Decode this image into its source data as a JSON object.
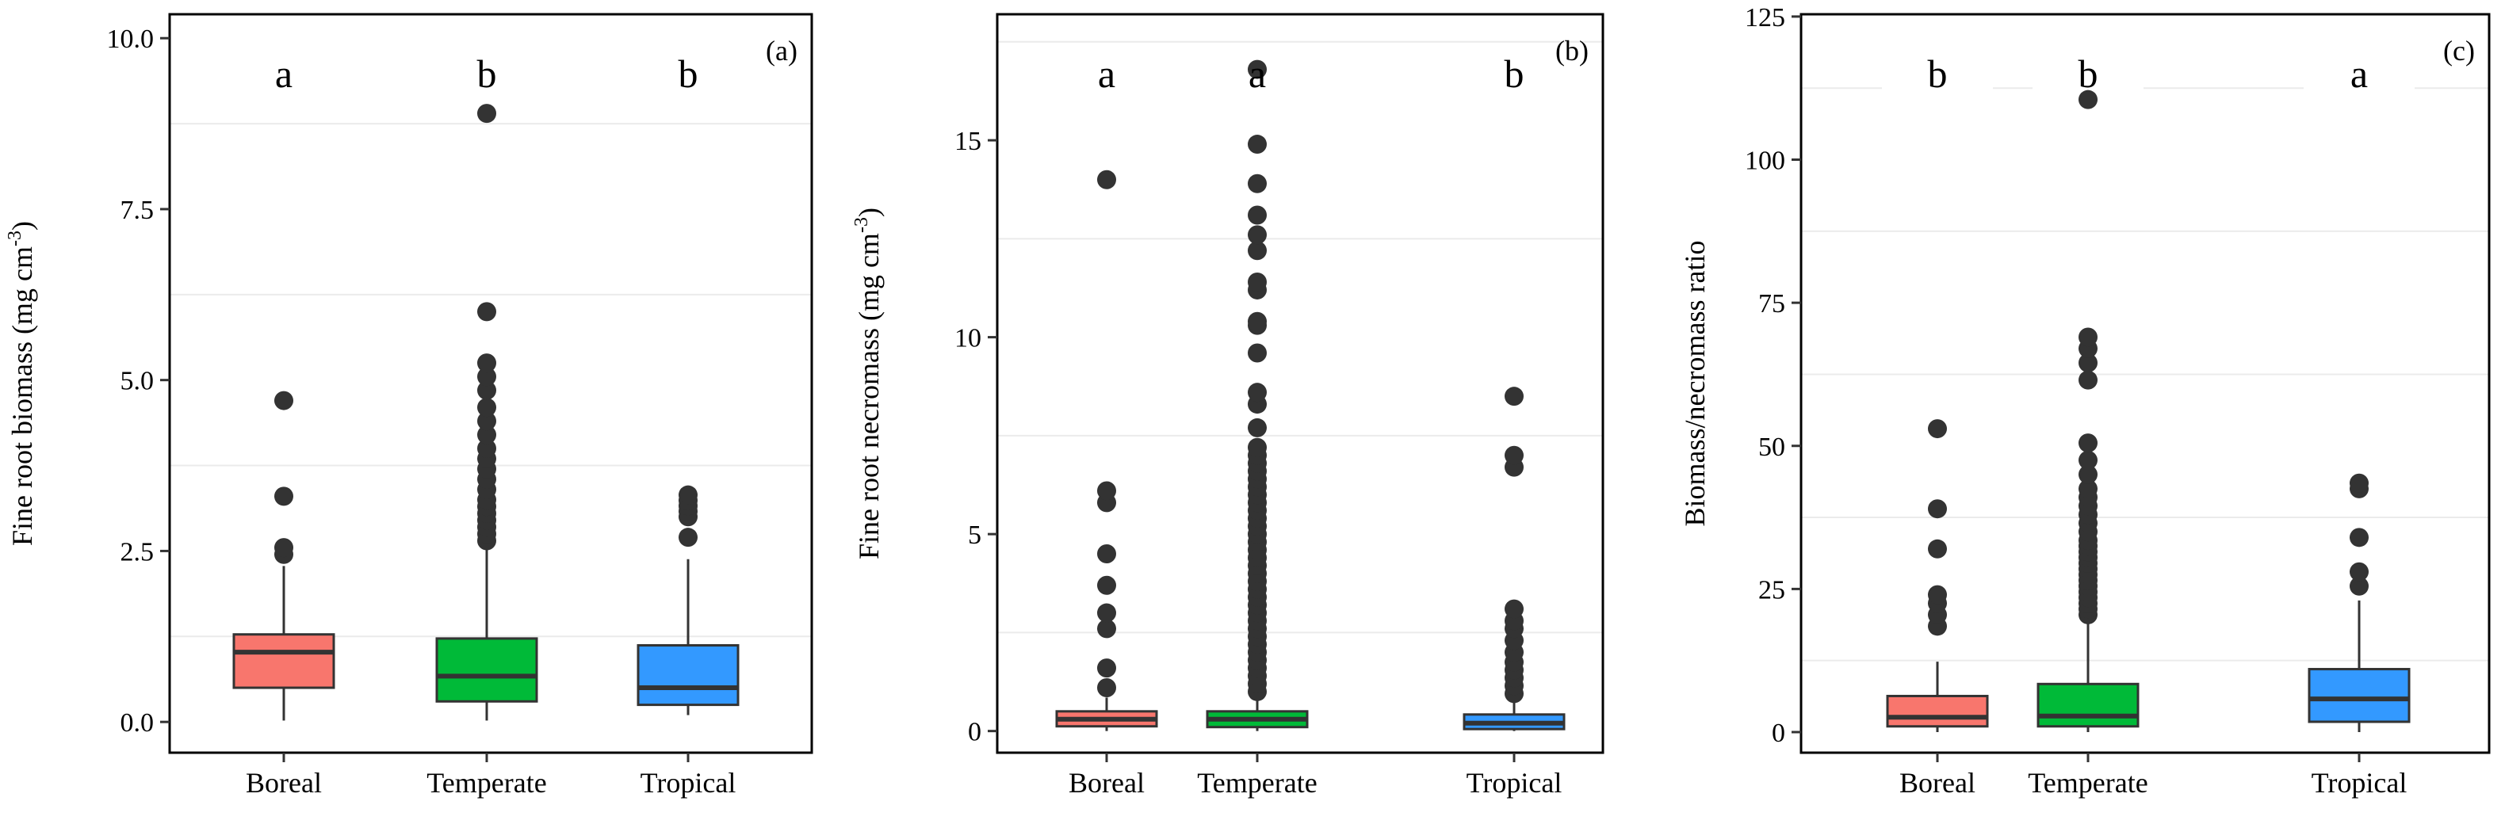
{
  "chart_data": [
    {
      "type": "box",
      "panel_label": "(a)",
      "ylabel": "Fine root biomass (mg cm",
      "ylabel_sup": "-3",
      "ylabel_close": ")",
      "ylim": [
        -0.45,
        10.35
      ],
      "y_ticks": [
        "0.0",
        "2.5",
        "5.0",
        "7.5",
        "10.0"
      ],
      "y_tick_values": [
        0,
        2.5,
        5.0,
        7.5,
        10.0
      ],
      "minor_gridlines": [
        1.25,
        3.75,
        6.25,
        8.75
      ],
      "categories": [
        "Boreal",
        "Temperate",
        "Tropical"
      ],
      "letters": [
        "a",
        "b",
        "b"
      ],
      "boxes": [
        {
          "color": "#F8766D",
          "whisker_low": 0.02,
          "q1": 0.5,
          "median": 1.02,
          "q3": 1.28,
          "whisker_high": 2.28,
          "outliers": [
            2.45,
            2.55,
            3.3,
            4.7
          ]
        },
        {
          "color": "#00BA38",
          "whisker_low": 0.02,
          "q1": 0.3,
          "median": 0.67,
          "q3": 1.22,
          "whisker_high": 2.55,
          "outliers": [
            2.65,
            2.75,
            2.85,
            2.95,
            3.05,
            3.15,
            3.25,
            3.4,
            3.55,
            3.7,
            3.85,
            4.0,
            4.2,
            4.4,
            4.6,
            4.85,
            5.05,
            5.25,
            6.0,
            8.9
          ]
        },
        {
          "color": "#3399FF",
          "whisker_low": 0.1,
          "q1": 0.25,
          "median": 0.5,
          "q3": 1.12,
          "whisker_high": 2.38,
          "outliers": [
            2.7,
            3.0,
            3.08,
            3.16,
            3.24,
            3.32
          ]
        }
      ]
    },
    {
      "type": "box",
      "panel_label": "(b)",
      "ylabel": "Fine root necromass (mg cm",
      "ylabel_sup": "-3",
      "ylabel_close": ")",
      "ylim": [
        -0.55,
        18.2
      ],
      "y_ticks": [
        "0",
        "5",
        "10",
        "15"
      ],
      "y_tick_values": [
        0,
        5,
        10,
        15
      ],
      "minor_gridlines": [
        2.5,
        7.5,
        12.5,
        17.5
      ],
      "categories": [
        "Boreal",
        "Temperate",
        "Tropical"
      ],
      "letters": [
        "a",
        "a",
        "b"
      ],
      "boxes": [
        {
          "color": "#F8766D",
          "whisker_low": 0.0,
          "q1": 0.12,
          "median": 0.3,
          "q3": 0.5,
          "whisker_high": 0.85,
          "outliers": [
            1.1,
            1.6,
            2.6,
            3.0,
            3.7,
            4.5,
            5.8,
            6.1,
            14.0
          ]
        },
        {
          "color": "#00BA38",
          "whisker_low": 0.0,
          "q1": 0.1,
          "median": 0.3,
          "q3": 0.5,
          "whisker_high": 0.9,
          "outliers": [
            1.0,
            1.2,
            1.4,
            1.6,
            1.8,
            2.0,
            2.2,
            2.4,
            2.6,
            2.8,
            3.0,
            3.2,
            3.4,
            3.6,
            3.8,
            4.0,
            4.2,
            4.4,
            4.6,
            4.8,
            5.0,
            5.2,
            5.4,
            5.6,
            5.8,
            6.0,
            6.2,
            6.4,
            6.6,
            6.8,
            7.0,
            7.2,
            7.7,
            8.3,
            8.6,
            9.6,
            10.3,
            10.4,
            11.2,
            11.4,
            12.2,
            12.6,
            13.1,
            13.9,
            14.9,
            16.8
          ]
        },
        {
          "color": "#3399FF",
          "whisker_low": 0.0,
          "q1": 0.05,
          "median": 0.2,
          "q3": 0.42,
          "whisker_high": 0.8,
          "outliers": [
            0.95,
            1.15,
            1.35,
            1.55,
            1.75,
            2.0,
            2.3,
            2.6,
            2.8,
            3.1,
            6.7,
            7.0,
            8.5
          ]
        }
      ]
    },
    {
      "type": "box",
      "panel_label": "(c)",
      "ylabel": "Biomass/necromass ratio",
      "ylabel_sup": "",
      "ylabel_close": "",
      "ylim": [
        -3.6,
        125.4
      ],
      "y_ticks": [
        "0",
        "25",
        "50",
        "75",
        "100",
        "125"
      ],
      "y_tick_values": [
        0,
        25,
        50,
        75,
        100,
        125
      ],
      "minor_gridlines": [
        12.5,
        37.5,
        62.5,
        87.5,
        112.5
      ],
      "categories": [
        "Boreal",
        "Temperate",
        "Tropical"
      ],
      "letters": [
        "b",
        "b",
        "a"
      ],
      "boxes": [
        {
          "color": "#F8766D",
          "whisker_low": 0.0,
          "q1": 1.0,
          "median": 2.6,
          "q3": 6.3,
          "whisker_high": 12.3,
          "outliers": [
            18.5,
            20.5,
            22.5,
            24.0,
            32.0,
            39.0,
            53.0
          ]
        },
        {
          "color": "#00BA38",
          "whisker_low": 0.0,
          "q1": 1.0,
          "median": 2.8,
          "q3": 8.4,
          "whisker_high": 19.5,
          "outliers": [
            20.5,
            21.5,
            22.5,
            23.5,
            24.5,
            25.5,
            26.5,
            27.5,
            28.5,
            29.5,
            30.5,
            31.5,
            32.5,
            33.5,
            35.0,
            36.5,
            38.0,
            39.5,
            41.0,
            42.5,
            45.0,
            47.5,
            50.5,
            61.5,
            64.5,
            67.0,
            69.0,
            110.5
          ]
        },
        {
          "color": "#3399FF",
          "whisker_low": 0.0,
          "q1": 1.8,
          "median": 5.8,
          "q3": 11.0,
          "whisker_high": 23.0,
          "outliers": [
            25.5,
            28.0,
            34.0,
            42.5,
            43.5
          ]
        }
      ]
    }
  ]
}
